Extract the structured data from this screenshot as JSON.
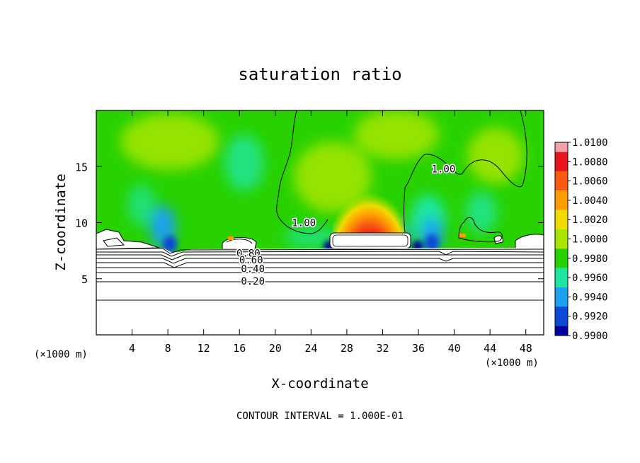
{
  "chart_data": {
    "type": "heatmap",
    "title": "saturation ratio",
    "xlabel": "X-coordinate",
    "ylabel": "Z-coordinate",
    "x_unit": "(×1000 m)",
    "xlim": [
      0,
      50
    ],
    "ylim": [
      0,
      20
    ],
    "x_ticks": [
      4,
      8,
      12,
      16,
      20,
      24,
      28,
      32,
      36,
      40,
      44,
      48
    ],
    "y_ticks": [
      5,
      10,
      15
    ],
    "footer": "CONTOUR INTERVAL = 1.000E-01",
    "colorbar": {
      "labels": [
        "1.0100",
        "1.0080",
        "1.0060",
        "1.0040",
        "1.0020",
        "1.0000",
        "0.9980",
        "0.9960",
        "0.9940",
        "0.9920",
        "0.9900"
      ],
      "colors": [
        "#f4a0a8",
        "#e8141e",
        "#f85a12",
        "#ff9c00",
        "#f0dc00",
        "#a8e600",
        "#28d200",
        "#1ee6a0",
        "#1ea0f0",
        "#0a4ad6",
        "#0000a0",
        "#3c0a8c"
      ]
    },
    "contour_labels": [
      {
        "text": "1.00",
        "x": 23.2,
        "z": 10.0
      },
      {
        "text": "1.00",
        "x": 38.8,
        "z": 14.8
      },
      {
        "text": "0.80",
        "x": 17.0,
        "z": 7.3
      },
      {
        "text": "0.60",
        "x": 17.3,
        "z": 6.7
      },
      {
        "text": "0.40",
        "x": 17.5,
        "z": 5.9
      },
      {
        "text": "0.20",
        "x": 17.5,
        "z": 4.8
      }
    ],
    "contour_levels": [
      0.2,
      0.4,
      0.6,
      0.8,
      1.0
    ]
  }
}
